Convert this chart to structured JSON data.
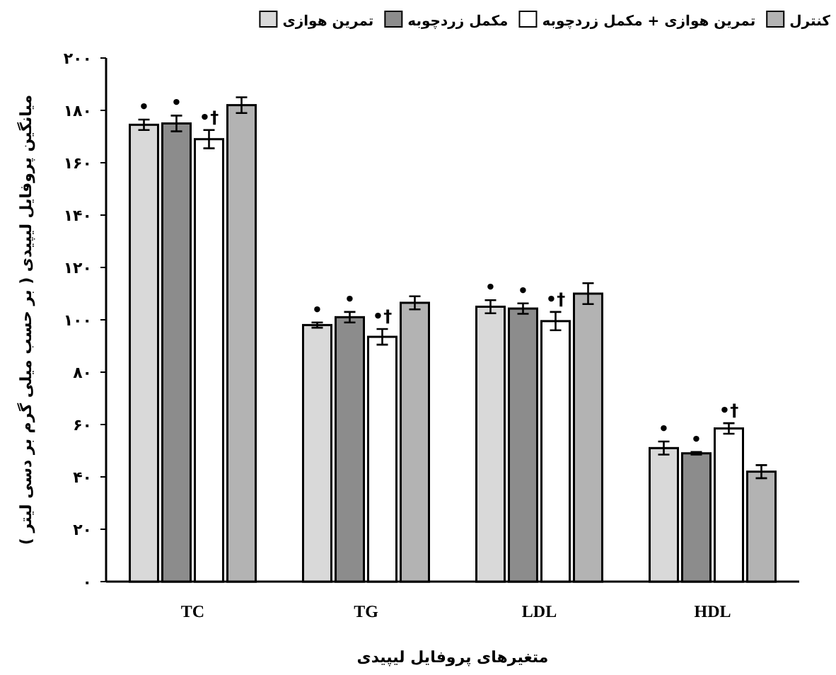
{
  "chart_data": {
    "type": "bar",
    "xlabel": "متغیرهای پروفایل لیپیدی",
    "ylabel": "میانگین پروفایل لیپیدی ( بر حسب میلی گرم بر دسی لیتر )",
    "categories": [
      "TC",
      "TG",
      "LDL",
      "HDL"
    ],
    "series": [
      {
        "name": "تمرین هوازی",
        "color": "#d9d9d9",
        "values": [
          174.5,
          98,
          105,
          51
        ],
        "errors": [
          2,
          1,
          2.5,
          2.5
        ],
        "value_labels": [
          "•",
          "•",
          "•",
          "•"
        ]
      },
      {
        "name": "مکمل زردچوبه",
        "color": "#8c8c8c",
        "values": [
          175,
          101,
          104.3,
          49
        ],
        "errors": [
          3,
          2,
          2,
          0.5
        ],
        "value_labels": [
          "•",
          "•",
          "•",
          "•"
        ]
      },
      {
        "name": "تمرین هوازی + مکمل زردچوبه",
        "color": "#ffffff",
        "values": [
          169,
          93.5,
          99.5,
          58.5
        ],
        "errors": [
          3.5,
          3,
          3.5,
          2
        ],
        "value_labels": [
          "•†",
          "•†",
          "•†",
          "•†"
        ]
      },
      {
        "name": "کنترل",
        "color": "#b3b3b3",
        "values": [
          182,
          106.5,
          110,
          42
        ],
        "errors": [
          3,
          2.5,
          4,
          2.5
        ],
        "value_labels": [
          null,
          null,
          null,
          null
        ]
      }
    ],
    "ylim": [
      0,
      200
    ],
    "yticks": [
      {
        "value": 0,
        "label": "۰"
      },
      {
        "value": 20,
        "label": "۲۰"
      },
      {
        "value": 40,
        "label": "۴۰"
      },
      {
        "value": 60,
        "label": "۶۰"
      },
      {
        "value": 80,
        "label": "۸۰"
      },
      {
        "value": 100,
        "label": "۱۰۰"
      },
      {
        "value": 120,
        "label": "۱۲۰"
      },
      {
        "value": 140,
        "label": "۱۴۰"
      },
      {
        "value": 160,
        "label": "۱۶۰"
      },
      {
        "value": 180,
        "label": "۱۸۰"
      },
      {
        "value": 200,
        "label": "۲۰۰"
      }
    ],
    "legend": "top right",
    "grid": false
  }
}
